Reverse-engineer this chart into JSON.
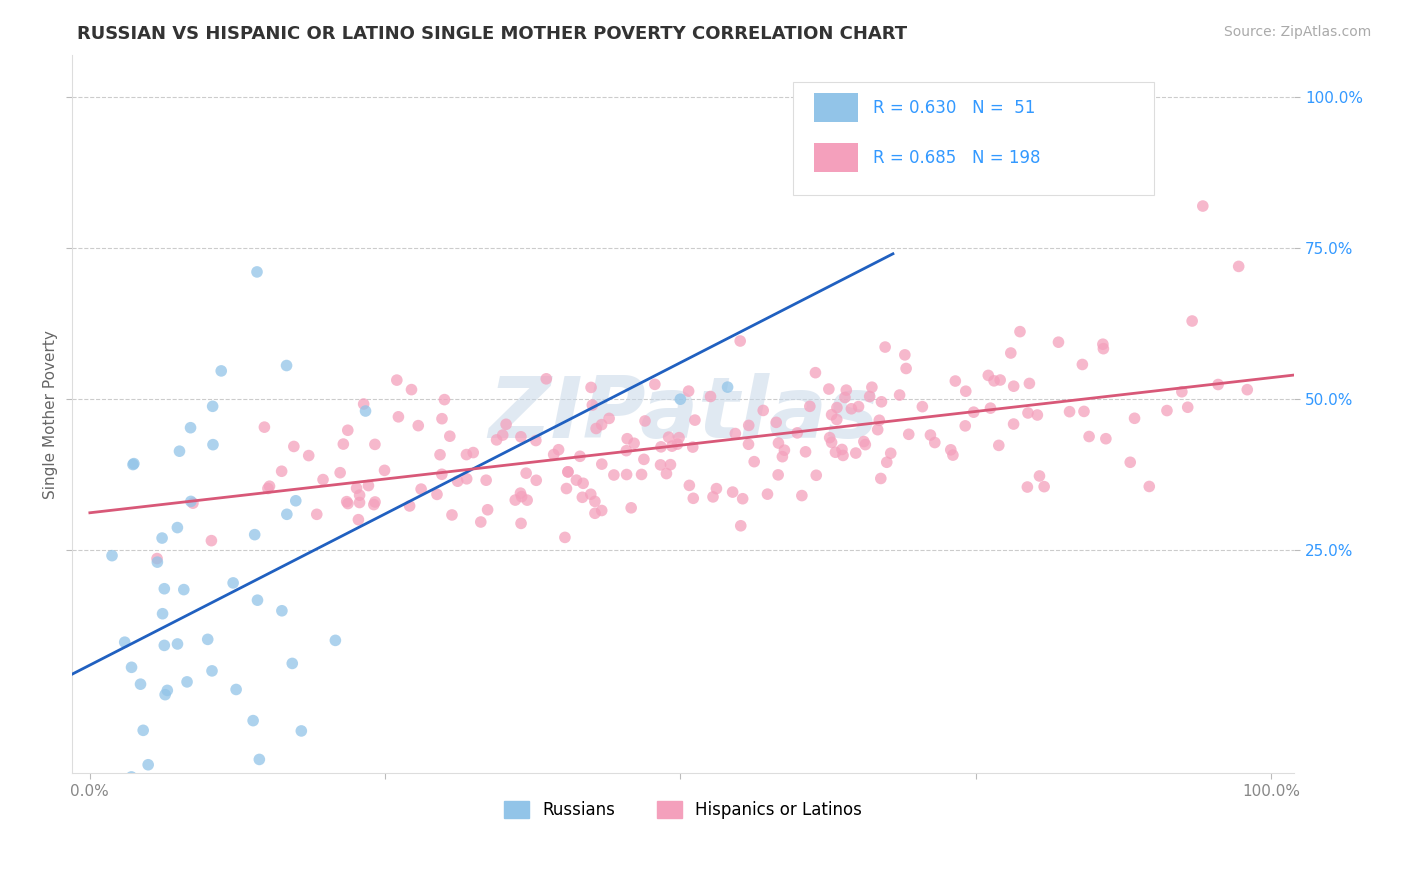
{
  "title": "RUSSIAN VS HISPANIC OR LATINO SINGLE MOTHER POVERTY CORRELATION CHART",
  "source": "Source: ZipAtlas.com",
  "ylabel": "Single Mother Poverty",
  "watermark": "ZIPatlas",
  "russian_R": "0.630",
  "russian_N": "51",
  "hispanic_R": "0.685",
  "hispanic_N": "198",
  "russian_color": "#92C4E8",
  "hispanic_color": "#F4A0BC",
  "russian_line_color": "#2060C0",
  "hispanic_line_color": "#D85878",
  "legend_label_russian": "Russians",
  "legend_label_hispanic": "Hispanics or Latinos",
  "title_color": "#333333",
  "stat_color": "#3399FF",
  "background_color": "#FFFFFF",
  "watermark_color": "#C8D8E8",
  "right_tick_color": "#3399FF",
  "x_tick_color": "#888888"
}
